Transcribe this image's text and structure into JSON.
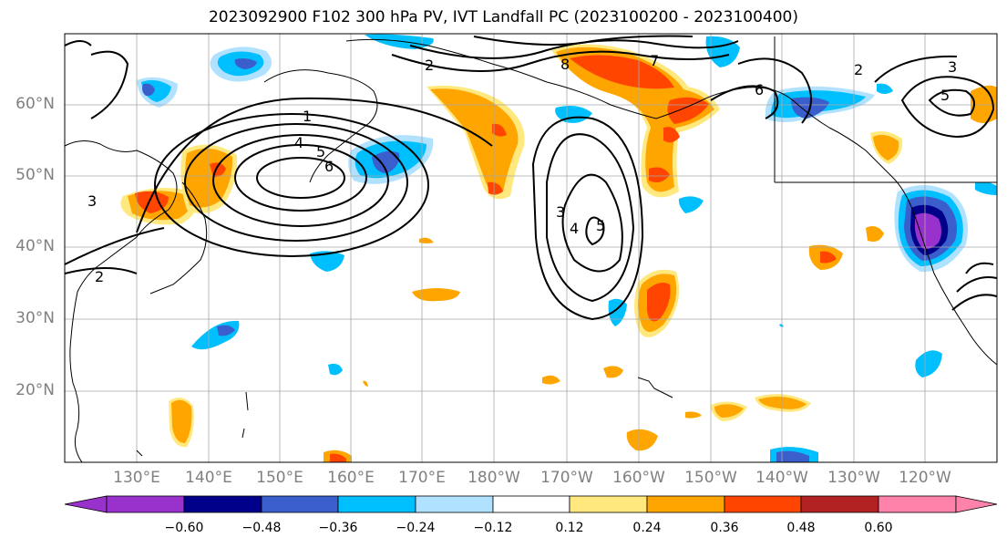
{
  "title": "2023092900 F102 300 hPa PV, IVT Landfall PC (2023100200 - 2023100400)",
  "lat_labels": [
    "60°N",
    "50°N",
    "40°N",
    "30°N",
    "20°N"
  ],
  "lon_labels": [
    "130°E",
    "140°E",
    "150°E",
    "160°E",
    "170°E",
    "180°W",
    "170°W",
    "160°W",
    "150°W",
    "140°W",
    "130°W",
    "120°W"
  ],
  "colorbar": {
    "ticks": [
      "−0.60",
      "−0.48",
      "−0.36",
      "−0.24",
      "−0.12",
      "0.12",
      "0.24",
      "0.36",
      "0.48",
      "0.60"
    ],
    "colors": [
      "#9932CC",
      "#00008B",
      "#3A5FCD",
      "#00BFFF",
      "#B0E2FF",
      "#FFFFFF",
      "#FFE97F",
      "#FFA500",
      "#FF4500",
      "#B22222",
      "#FF82AB"
    ]
  },
  "contour_labels": [
    "1",
    "2",
    "3",
    "4",
    "5",
    "6",
    "7",
    "8"
  ],
  "shading_colors": {
    "strong_neg": "#3A5FCD",
    "mid_neg": "#00BFFF",
    "weak_neg": "#B0E2FF",
    "weak_pos": "#FFE97F",
    "mid_pos": "#FFA500",
    "strong_pos": "#FF4500",
    "extreme_neg": "#9932CC",
    "very_strong_neg": "#00008B"
  }
}
